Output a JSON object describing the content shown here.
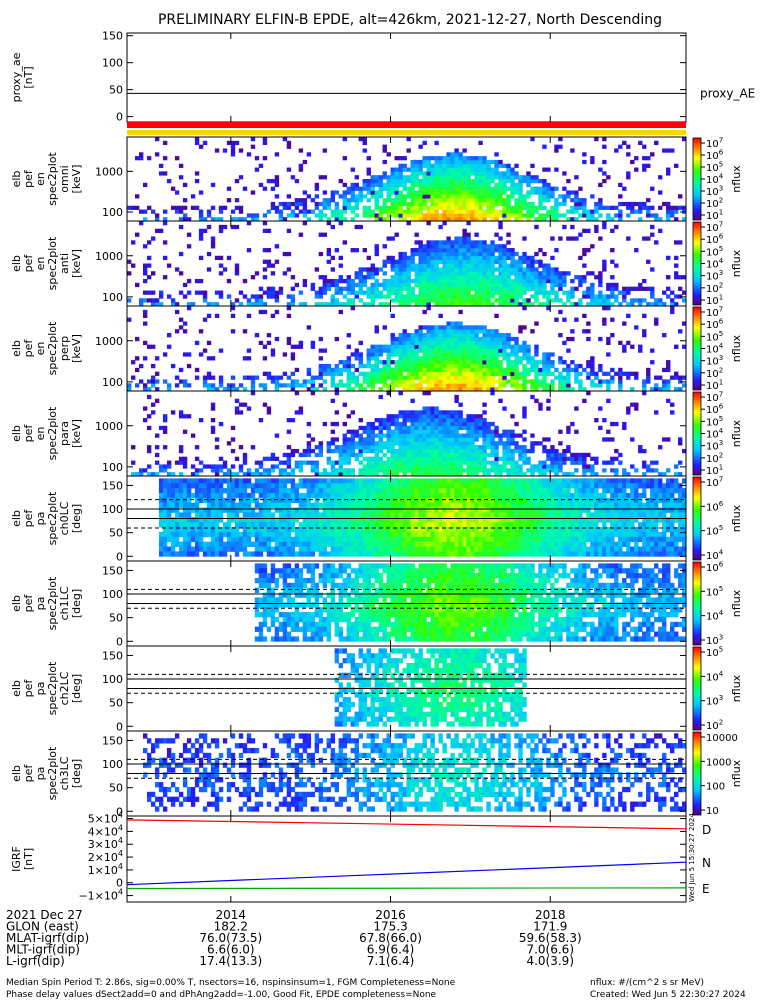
{
  "title": "PRELIMINARY ELFIN-B EPDE, alt=426km, 2021-12-27, North Descending",
  "chart_data": [
    {
      "type": "line",
      "name": "proxy_ae",
      "ylabel_lines": [
        "proxy_ae",
        "[nT]"
      ],
      "ylim": [
        -10,
        155
      ],
      "yticks": [
        "150",
        "100",
        "50",
        "0"
      ],
      "series": [
        {
          "name": "proxy_AE",
          "value": 43,
          "color": "#000000"
        }
      ]
    },
    {
      "type": "heatmap",
      "name": "elb_pef_en_spec2plot_omni",
      "ylabel_lines": [
        "elb",
        "pef",
        "en",
        "spec2plot",
        "omni",
        "[keV]"
      ],
      "yscale": "log",
      "ylim": [
        60,
        7000
      ],
      "yticks": [
        "1000",
        "100"
      ],
      "zscale": "log",
      "zlim": [
        10,
        10000000
      ],
      "ztitle": "nflux",
      "zticks": [
        "10^7",
        "10^6",
        "10^5",
        "10^4",
        "10^3",
        "10^2",
        "10^1"
      ],
      "peak_time": 2016.8,
      "intensity": 1.0
    },
    {
      "type": "heatmap",
      "name": "elb_pef_en_spec2plot_anti",
      "ylabel_lines": [
        "elb",
        "pef",
        "en",
        "spec2plot",
        "anti",
        "[keV]"
      ],
      "yscale": "log",
      "ylim": [
        60,
        7000
      ],
      "yticks": [
        "1000",
        "100"
      ],
      "zscale": "log",
      "zlim": [
        10,
        10000000
      ],
      "ztitle": "nflux",
      "zticks": [
        "10^7",
        "10^6",
        "10^5",
        "10^4",
        "10^3",
        "10^2",
        "10^1"
      ],
      "peak_time": 2016.9,
      "intensity": 0.55
    },
    {
      "type": "heatmap",
      "name": "elb_pef_en_spec2plot_perp",
      "ylabel_lines": [
        "elb",
        "pef",
        "en",
        "spec2plot",
        "perp",
        "[keV]"
      ],
      "yscale": "log",
      "ylim": [
        60,
        7000
      ],
      "yticks": [
        "1000",
        "100"
      ],
      "zscale": "log",
      "zlim": [
        10,
        10000000
      ],
      "ztitle": "nflux",
      "zticks": [
        "10^7",
        "10^6",
        "10^5",
        "10^4",
        "10^3",
        "10^2",
        "10^1"
      ],
      "peak_time": 2016.8,
      "intensity": 1.0
    },
    {
      "type": "heatmap",
      "name": "elb_pef_en_spec2plot_para",
      "ylabel_lines": [
        "elb",
        "pef",
        "en",
        "spec2plot",
        "para",
        "[keV]"
      ],
      "yscale": "log",
      "ylim": [
        60,
        7000
      ],
      "yticks": [
        "1000",
        "100"
      ],
      "zscale": "log",
      "zlim": [
        10,
        10000000
      ],
      "ztitle": "nflux",
      "zticks": [
        "10^7",
        "10^6",
        "10^5",
        "10^4",
        "10^3",
        "10^2",
        "10^1"
      ],
      "peak_time": 2016.5,
      "intensity": 0.45
    },
    {
      "type": "heatmap",
      "name": "elb_pef_pa_spec2plot_ch0LC",
      "ylabel_lines": [
        "elb",
        "pef",
        "pa",
        "spec2plot",
        "ch0LC",
        "[deg]"
      ],
      "ylim": [
        -10,
        170
      ],
      "yticks": [
        "150",
        "100",
        "50",
        "0"
      ],
      "zscale": "log",
      "zlim": [
        3000,
        10000000
      ],
      "ztitle": "nflux",
      "zticks": [
        "10^7",
        "10^6",
        "10^5",
        "10^4"
      ],
      "lc_lines": [
        60,
        80,
        100,
        120
      ],
      "intensity": 0.9
    },
    {
      "type": "heatmap",
      "name": "elb_pef_pa_spec2plot_ch1LC",
      "ylabel_lines": [
        "elb",
        "pef",
        "pa",
        "spec2plot",
        "ch1LC",
        "[deg]"
      ],
      "ylim": [
        -10,
        170
      ],
      "yticks": [
        "150",
        "100",
        "50",
        "0"
      ],
      "zscale": "log",
      "zlim": [
        1000,
        1000000
      ],
      "ztitle": "nflux",
      "zticks": [
        "10^6",
        "10^5",
        "10^4",
        "10^3"
      ],
      "lc_lines": [
        70,
        80,
        100,
        110
      ],
      "intensity": 0.8
    },
    {
      "type": "heatmap",
      "name": "elb_pef_pa_spec2plot_ch2LC",
      "ylabel_lines": [
        "elb",
        "pef",
        "pa",
        "spec2plot",
        "ch2LC",
        "[deg]"
      ],
      "ylim": [
        -10,
        170
      ],
      "yticks": [
        "150",
        "100",
        "50",
        "0"
      ],
      "zscale": "log",
      "zlim": [
        100,
        100000
      ],
      "ztitle": "nflux",
      "zticks": [
        "10^5",
        "10^4",
        "10^3",
        "10^2"
      ],
      "lc_lines": [
        70,
        80,
        100,
        110
      ],
      "intensity": 0.6
    },
    {
      "type": "heatmap",
      "name": "elb_pef_pa_spec2plot_ch3LC",
      "ylabel_lines": [
        "elb",
        "pef",
        "pa",
        "spec2plot",
        "ch3LC",
        "[deg]"
      ],
      "ylim": [
        -10,
        170
      ],
      "yticks": [
        "150",
        "100",
        "50",
        "0"
      ],
      "zscale": "log",
      "zlim": [
        10,
        10000
      ],
      "ztitle": "nflux",
      "zticks": [
        "10000",
        "1000",
        "100",
        "10"
      ],
      "lc_lines": [
        70,
        80,
        100,
        110
      ],
      "intensity": 0.45
    },
    {
      "type": "line",
      "name": "igrf",
      "ylabel_lines": [
        "IGRF",
        "[nT]"
      ],
      "ylim": [
        -15000,
        52000
      ],
      "yticks": [
        "5×10^4",
        "4×10^4",
        "3×10^4",
        "2×10^4",
        "1×10^4",
        "0",
        "−1×10^4"
      ],
      "series": [
        {
          "name": "D",
          "start": 49000,
          "end": 42000,
          "color": "#ff0000"
        },
        {
          "name": "N",
          "start": -1500,
          "end": 16000,
          "color": "#0000ff"
        },
        {
          "name": "E",
          "start": -4500,
          "end": -4000,
          "color": "#00aa00"
        }
      ]
    }
  ],
  "x_axis": {
    "xlim": [
      2012.7,
      2019.7
    ],
    "ticks": [
      2014,
      2016,
      2018
    ],
    "rows": [
      {
        "label": "2021 Dec 27",
        "values": [
          "2014",
          "2016",
          "2018"
        ]
      },
      {
        "label": "GLON (east)",
        "values": [
          "182.2",
          "175.3",
          "171.9"
        ]
      },
      {
        "label": "MLAT-igrf(dip)",
        "values": [
          "76.0(73.5)",
          "67.8(66.0)",
          "59.6(58.3)"
        ]
      },
      {
        "label": "MLT-igrf(dip)",
        "values": [
          "6.6(6.0)",
          "6.9(6.4)",
          "7.0(6.6)"
        ]
      },
      {
        "label": "L-igrf(dip)",
        "values": [
          "17.4(13.3)",
          "7.1(6.4)",
          "4.0(3.9)"
        ]
      }
    ]
  },
  "footer": {
    "left_line1": "Median Spin Period T: 2.86s, sig=0.00% T, nsectors=16, nspinsinsum=1, FGM Completeness=None",
    "left_line2": "Phase delay values dSect2add=0 and dPhAng2add=-1.00, Good Fit, EPDE completeness=None",
    "right_line1": "nflux: #/(cm^2 s sr MeV)",
    "right_line2": "Created: Wed Jun  5 22:30:27 2024"
  },
  "side_stamp": "Wed Jun  5 15:30:27 2024",
  "colors": {
    "status_bar_top": "#ff0000",
    "status_bar_bottom": "#ffd700"
  }
}
